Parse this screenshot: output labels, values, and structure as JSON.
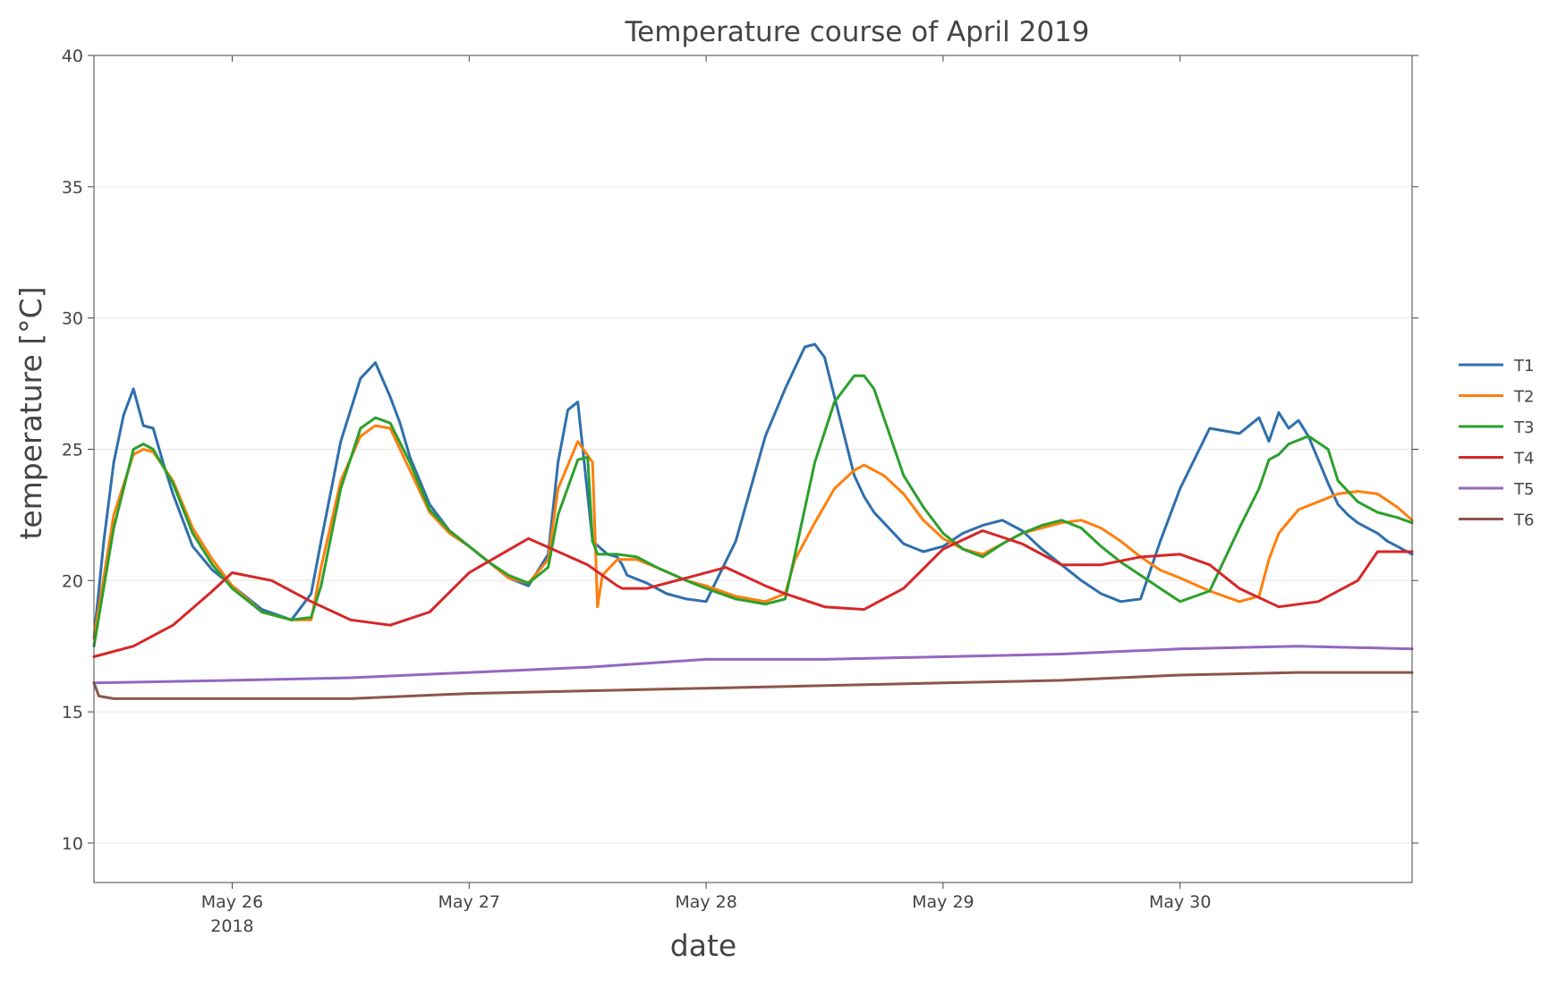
{
  "chart_data": {
    "type": "line",
    "title": "Temperature course of April 2019",
    "xlabel": "date",
    "ylabel": "temperature [°C]",
    "xlim": [
      "2018-05-25 10:00",
      "2018-05-30 23:30"
    ],
    "ylim": [
      8.5,
      40
    ],
    "grid": true,
    "legend_position": "right",
    "x_ticks": [
      {
        "x": "2018-05-26 00:00",
        "label": "May 26",
        "sublabel": "2018"
      },
      {
        "x": "2018-05-27 00:00",
        "label": "May 27",
        "sublabel": ""
      },
      {
        "x": "2018-05-28 00:00",
        "label": "May 28",
        "sublabel": ""
      },
      {
        "x": "2018-05-29 00:00",
        "label": "May 29",
        "sublabel": ""
      },
      {
        "x": "2018-05-30 00:00",
        "label": "May 30",
        "sublabel": ""
      }
    ],
    "y_ticks": [
      {
        "y": 10,
        "label": "10"
      },
      {
        "y": 15,
        "label": "15"
      },
      {
        "y": 20,
        "label": "20"
      },
      {
        "y": 25,
        "label": "25"
      },
      {
        "y": 30,
        "label": "30"
      },
      {
        "y": 35,
        "label": "35"
      },
      {
        "y": 40,
        "label": "40"
      }
    ],
    "series": [
      {
        "name": "T1",
        "color": "#2f6fad",
        "x": [
          "2018-05-25 10:00",
          "2018-05-25 11:00",
          "2018-05-25 12:00",
          "2018-05-25 13:00",
          "2018-05-25 14:00",
          "2018-05-25 15:00",
          "2018-05-25 16:00",
          "2018-05-25 17:00",
          "2018-05-25 18:00",
          "2018-05-25 20:00",
          "2018-05-25 22:00",
          "2018-05-26 00:00",
          "2018-05-26 03:00",
          "2018-05-26 06:00",
          "2018-05-26 08:00",
          "2018-05-26 09:00",
          "2018-05-26 11:00",
          "2018-05-26 13:00",
          "2018-05-26 14:30",
          "2018-05-26 16:00",
          "2018-05-26 17:00",
          "2018-05-26 18:00",
          "2018-05-26 20:00",
          "2018-05-26 22:00",
          "2018-05-27 00:00",
          "2018-05-27 02:00",
          "2018-05-27 04:00",
          "2018-05-27 06:00",
          "2018-05-27 08:00",
          "2018-05-27 09:00",
          "2018-05-27 10:00",
          "2018-05-27 11:00",
          "2018-05-27 12:30",
          "2018-05-27 14:00",
          "2018-05-27 15:00",
          "2018-05-27 15:30",
          "2018-05-27 15:45",
          "2018-05-27 16:00",
          "2018-05-27 18:00",
          "2018-05-27 20:00",
          "2018-05-27 22:00",
          "2018-05-28 00:00",
          "2018-05-28 03:00",
          "2018-05-28 06:00",
          "2018-05-28 08:00",
          "2018-05-28 09:00",
          "2018-05-28 10:00",
          "2018-05-28 11:00",
          "2018-05-28 12:00",
          "2018-05-28 13:00",
          "2018-05-28 14:00",
          "2018-05-28 15:00",
          "2018-05-28 16:00",
          "2018-05-28 17:00",
          "2018-05-28 18:00",
          "2018-05-28 20:00",
          "2018-05-28 22:00",
          "2018-05-29 00:00",
          "2018-05-29 02:00",
          "2018-05-29 04:00",
          "2018-05-29 06:00",
          "2018-05-29 08:00",
          "2018-05-29 10:00",
          "2018-05-29 12:00",
          "2018-05-29 14:00",
          "2018-05-29 16:00",
          "2018-05-29 18:00",
          "2018-05-29 20:00",
          "2018-05-29 22:00",
          "2018-05-30 00:00",
          "2018-05-30 03:00",
          "2018-05-30 06:00",
          "2018-05-30 08:00",
          "2018-05-30 09:00",
          "2018-05-30 10:00",
          "2018-05-30 11:00",
          "2018-05-30 12:00",
          "2018-05-30 13:00",
          "2018-05-30 14:00",
          "2018-05-30 15:00",
          "2018-05-30 16:00",
          "2018-05-30 17:00",
          "2018-05-30 18:00",
          "2018-05-30 19:00",
          "2018-05-30 20:00",
          "2018-05-30 21:00",
          "2018-05-30 22:00",
          "2018-05-30 23:30"
        ],
        "y": [
          17.8,
          21.5,
          24.5,
          26.3,
          27.3,
          25.9,
          25.8,
          24.5,
          23.3,
          21.3,
          20.4,
          19.8,
          18.9,
          18.5,
          19.5,
          21.5,
          25.3,
          27.7,
          28.3,
          27.0,
          26.0,
          24.7,
          22.9,
          21.9,
          21.3,
          20.7,
          20.1,
          19.8,
          21.0,
          24.5,
          26.5,
          26.8,
          21.5,
          21.0,
          20.9,
          20.6,
          20.4,
          20.2,
          19.9,
          19.5,
          19.3,
          19.2,
          21.5,
          25.5,
          27.3,
          28.1,
          28.9,
          29.0,
          28.5,
          27.0,
          25.5,
          24.0,
          23.2,
          22.6,
          22.2,
          21.4,
          21.1,
          21.3,
          21.8,
          22.1,
          22.3,
          21.9,
          21.2,
          20.6,
          20.0,
          19.5,
          19.2,
          19.3,
          21.5,
          23.5,
          25.8,
          25.6,
          26.2,
          25.3,
          26.4,
          25.8,
          26.1,
          25.5,
          24.6,
          23.7,
          22.9,
          22.5,
          22.2,
          22.0,
          21.8,
          21.5,
          21.3,
          21.0
        ]
      },
      {
        "name": "T2",
        "color": "#ff7f0e",
        "x": [
          "2018-05-25 10:00",
          "2018-05-25 12:00",
          "2018-05-25 14:00",
          "2018-05-25 15:00",
          "2018-05-25 16:00",
          "2018-05-25 18:00",
          "2018-05-25 20:00",
          "2018-05-25 22:00",
          "2018-05-26 00:00",
          "2018-05-26 03:00",
          "2018-05-26 06:00",
          "2018-05-26 08:00",
          "2018-05-26 09:00",
          "2018-05-26 11:00",
          "2018-05-26 13:00",
          "2018-05-26 14:30",
          "2018-05-26 16:00",
          "2018-05-26 18:00",
          "2018-05-26 20:00",
          "2018-05-26 22:00",
          "2018-05-27 00:00",
          "2018-05-27 02:00",
          "2018-05-27 04:00",
          "2018-05-27 06:00",
          "2018-05-27 08:00",
          "2018-05-27 09:00",
          "2018-05-27 11:00",
          "2018-05-27 12:30",
          "2018-05-27 13:00",
          "2018-05-27 13:30",
          "2018-05-27 15:00",
          "2018-05-27 17:00",
          "2018-05-27 19:00",
          "2018-05-27 22:00",
          "2018-05-28 00:00",
          "2018-05-28 03:00",
          "2018-05-28 06:00",
          "2018-05-28 08:00",
          "2018-05-28 09:00",
          "2018-05-28 11:00",
          "2018-05-28 13:00",
          "2018-05-28 15:00",
          "2018-05-28 16:00",
          "2018-05-28 18:00",
          "2018-05-28 20:00",
          "2018-05-28 22:00",
          "2018-05-29 00:00",
          "2018-05-29 02:00",
          "2018-05-29 04:00",
          "2018-05-29 06:00",
          "2018-05-29 08:00",
          "2018-05-29 10:00",
          "2018-05-29 12:00",
          "2018-05-29 14:00",
          "2018-05-29 16:00",
          "2018-05-29 18:00",
          "2018-05-29 20:00",
          "2018-05-29 22:00",
          "2018-05-30 00:00",
          "2018-05-30 03:00",
          "2018-05-30 06:00",
          "2018-05-30 08:00",
          "2018-05-30 09:00",
          "2018-05-30 10:00",
          "2018-05-30 12:00",
          "2018-05-30 14:00",
          "2018-05-30 16:00",
          "2018-05-30 18:00",
          "2018-05-30 20:00",
          "2018-05-30 22:00",
          "2018-05-30 23:30"
        ],
        "y": [
          17.8,
          22.5,
          24.8,
          25.0,
          24.9,
          23.8,
          22.0,
          20.8,
          19.8,
          18.8,
          18.5,
          18.5,
          20.5,
          23.8,
          25.5,
          25.9,
          25.8,
          24.2,
          22.6,
          21.8,
          21.3,
          20.7,
          20.1,
          19.9,
          20.8,
          23.5,
          25.3,
          24.5,
          19.0,
          20.2,
          20.8,
          20.8,
          20.5,
          20.0,
          19.8,
          19.4,
          19.2,
          19.5,
          20.8,
          22.2,
          23.5,
          24.2,
          24.4,
          24.0,
          23.3,
          22.3,
          21.6,
          21.2,
          21.0,
          21.4,
          21.8,
          22.0,
          22.2,
          22.3,
          22.0,
          21.5,
          20.9,
          20.4,
          20.1,
          19.6,
          19.2,
          19.4,
          20.8,
          21.8,
          22.7,
          23.0,
          23.3,
          23.4,
          23.3,
          22.8,
          22.3
        ]
      },
      {
        "name": "T3",
        "color": "#2ca02c",
        "x": [
          "2018-05-25 10:00",
          "2018-05-25 12:00",
          "2018-05-25 14:00",
          "2018-05-25 15:00",
          "2018-05-25 16:00",
          "2018-05-25 18:00",
          "2018-05-25 20:00",
          "2018-05-25 22:00",
          "2018-05-26 00:00",
          "2018-05-26 03:00",
          "2018-05-26 06:00",
          "2018-05-26 08:00",
          "2018-05-26 09:00",
          "2018-05-26 11:00",
          "2018-05-26 13:00",
          "2018-05-26 14:30",
          "2018-05-26 16:00",
          "2018-05-26 18:00",
          "2018-05-26 20:00",
          "2018-05-26 22:00",
          "2018-05-27 00:00",
          "2018-05-27 02:00",
          "2018-05-27 04:00",
          "2018-05-27 06:00",
          "2018-05-27 08:00",
          "2018-05-27 09:00",
          "2018-05-27 11:00",
          "2018-05-27 12:00",
          "2018-05-27 12:30",
          "2018-05-27 13:00",
          "2018-05-27 15:00",
          "2018-05-27 17:00",
          "2018-05-27 19:00",
          "2018-05-27 22:00",
          "2018-05-28 00:00",
          "2018-05-28 03:00",
          "2018-05-28 06:00",
          "2018-05-28 08:00",
          "2018-05-28 09:00",
          "2018-05-28 11:00",
          "2018-05-28 13:00",
          "2018-05-28 15:00",
          "2018-05-28 16:00",
          "2018-05-28 17:00",
          "2018-05-28 18:00",
          "2018-05-28 20:00",
          "2018-05-28 22:00",
          "2018-05-29 00:00",
          "2018-05-29 02:00",
          "2018-05-29 04:00",
          "2018-05-29 06:00",
          "2018-05-29 08:00",
          "2018-05-29 10:00",
          "2018-05-29 12:00",
          "2018-05-29 14:00",
          "2018-05-29 16:00",
          "2018-05-29 18:00",
          "2018-05-29 20:00",
          "2018-05-29 22:00",
          "2018-05-30 00:00",
          "2018-05-30 03:00",
          "2018-05-30 06:00",
          "2018-05-30 08:00",
          "2018-05-30 09:00",
          "2018-05-30 10:00",
          "2018-05-30 11:00",
          "2018-05-30 13:00",
          "2018-05-30 15:00",
          "2018-05-30 16:00",
          "2018-05-30 18:00",
          "2018-05-30 20:00",
          "2018-05-30 22:00",
          "2018-05-30 23:30"
        ],
        "y": [
          17.5,
          22.0,
          25.0,
          25.2,
          25.0,
          23.7,
          21.8,
          20.6,
          19.7,
          18.8,
          18.5,
          18.6,
          19.8,
          23.5,
          25.8,
          26.2,
          26.0,
          24.5,
          22.7,
          21.9,
          21.3,
          20.7,
          20.2,
          19.9,
          20.5,
          22.5,
          24.6,
          24.7,
          21.5,
          21.0,
          21.0,
          20.9,
          20.5,
          20.0,
          19.7,
          19.3,
          19.1,
          19.3,
          21.0,
          24.5,
          26.8,
          27.8,
          27.8,
          27.3,
          26.2,
          24.0,
          22.8,
          21.8,
          21.2,
          20.9,
          21.4,
          21.8,
          22.1,
          22.3,
          22.0,
          21.3,
          20.7,
          20.2,
          19.7,
          19.2,
          19.6,
          22.0,
          23.5,
          24.6,
          24.8,
          25.2,
          25.5,
          25.0,
          23.8,
          23.0,
          22.6,
          22.4,
          22.2
        ]
      },
      {
        "name": "T4",
        "color": "#d62728",
        "x": [
          "2018-05-25 10:00",
          "2018-05-25 14:00",
          "2018-05-25 18:00",
          "2018-05-25 22:00",
          "2018-05-26 00:00",
          "2018-05-26 04:00",
          "2018-05-26 08:00",
          "2018-05-26 12:00",
          "2018-05-26 16:00",
          "2018-05-26 20:00",
          "2018-05-27 00:00",
          "2018-05-27 06:00",
          "2018-05-27 12:00",
          "2018-05-27 15:00",
          "2018-05-27 15:30",
          "2018-05-27 18:00",
          "2018-05-27 22:00",
          "2018-05-28 02:00",
          "2018-05-28 06:00",
          "2018-05-28 08:00",
          "2018-05-28 12:00",
          "2018-05-28 16:00",
          "2018-05-28 20:00",
          "2018-05-29 00:00",
          "2018-05-29 04:00",
          "2018-05-29 08:00",
          "2018-05-29 12:00",
          "2018-05-29 16:00",
          "2018-05-29 20:00",
          "2018-05-30 00:00",
          "2018-05-30 03:00",
          "2018-05-30 06:00",
          "2018-05-30 10:00",
          "2018-05-30 14:00",
          "2018-05-30 18:00",
          "2018-05-30 20:00",
          "2018-05-30 23:30"
        ],
        "y": [
          17.1,
          17.5,
          18.3,
          19.6,
          20.3,
          20.0,
          19.2,
          18.5,
          18.3,
          18.8,
          20.3,
          21.6,
          20.6,
          19.8,
          19.7,
          19.7,
          20.1,
          20.5,
          19.8,
          19.5,
          19.0,
          18.9,
          19.7,
          21.2,
          21.9,
          21.4,
          20.6,
          20.6,
          20.9,
          21.0,
          20.6,
          19.7,
          19.0,
          19.2,
          20.0,
          21.1,
          21.1
        ]
      },
      {
        "name": "T5",
        "color": "#9467bd",
        "x": [
          "2018-05-25 10:00",
          "2018-05-26 00:00",
          "2018-05-26 12:00",
          "2018-05-27 00:00",
          "2018-05-27 12:00",
          "2018-05-28 00:00",
          "2018-05-28 12:00",
          "2018-05-29 00:00",
          "2018-05-29 12:00",
          "2018-05-30 00:00",
          "2018-05-30 12:00",
          "2018-05-30 23:30"
        ],
        "y": [
          16.1,
          16.2,
          16.3,
          16.5,
          16.7,
          17.0,
          17.0,
          17.1,
          17.2,
          17.4,
          17.5,
          17.4
        ]
      },
      {
        "name": "T6",
        "color": "#8c564b",
        "x": [
          "2018-05-25 10:00",
          "2018-05-25 10:30",
          "2018-05-25 12:00",
          "2018-05-26 00:00",
          "2018-05-26 12:00",
          "2018-05-27 00:00",
          "2018-05-27 12:00",
          "2018-05-28 00:00",
          "2018-05-28 12:00",
          "2018-05-29 00:00",
          "2018-05-29 12:00",
          "2018-05-30 00:00",
          "2018-05-30 12:00",
          "2018-05-30 23:30"
        ],
        "y": [
          16.1,
          15.6,
          15.5,
          15.5,
          15.5,
          15.7,
          15.8,
          15.9,
          16.0,
          16.1,
          16.2,
          16.4,
          16.5,
          16.5
        ]
      }
    ]
  }
}
